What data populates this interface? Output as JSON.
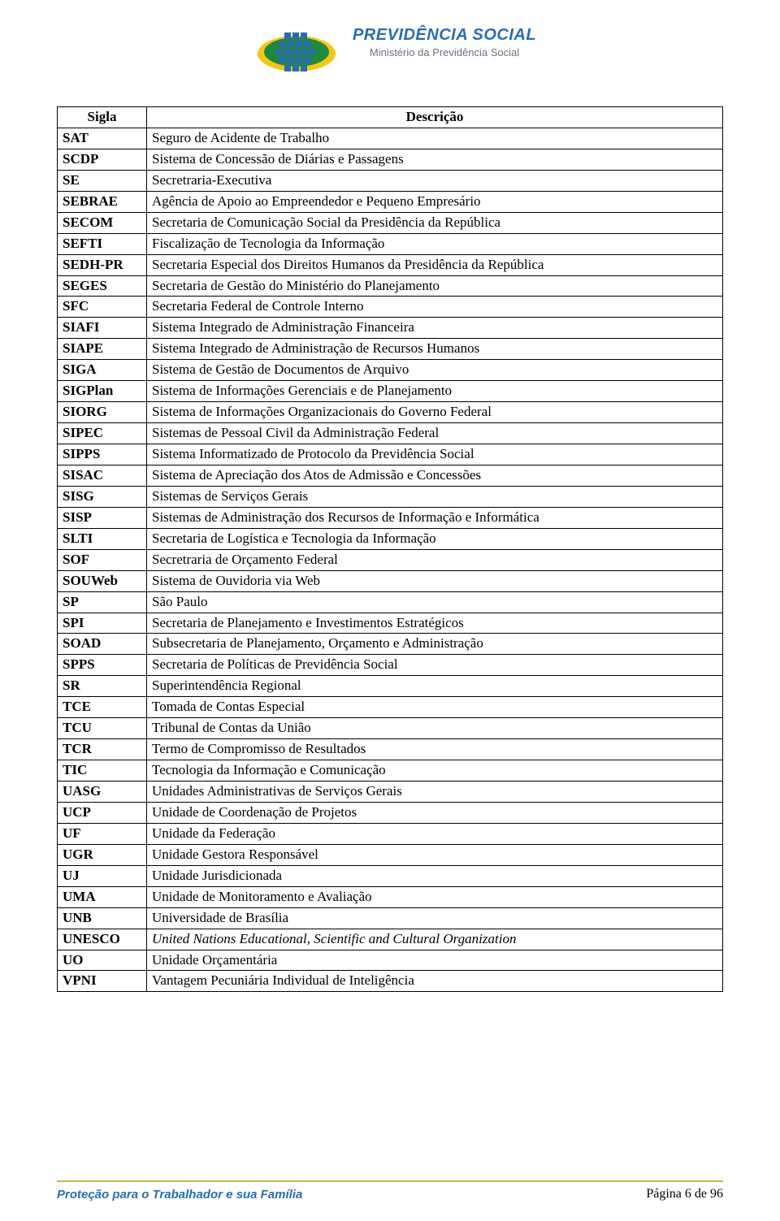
{
  "header": {
    "brand_title": "PREVIDÊNCIA SOCIAL",
    "brand_subtitle": "Ministério da Previdência Social",
    "logo_colors": {
      "blue": "#2b6cb0",
      "yellow": "#f5c518",
      "green": "#1f8a3b"
    }
  },
  "table": {
    "header_sigla": "Sigla",
    "header_desc": "Descrição",
    "rows": [
      {
        "sigla": "SAT",
        "desc": "Seguro de Acidente de Trabalho"
      },
      {
        "sigla": "SCDP",
        "desc": "Sistema de Concessão de Diárias e Passagens"
      },
      {
        "sigla": "SE",
        "desc": "Secretraria-Executiva"
      },
      {
        "sigla": "SEBRAE",
        "desc": "Agência de Apoio ao Empreendedor e Pequeno Empresário"
      },
      {
        "sigla": "SECOM",
        "desc": "Secretaria de Comunicação Social da Presidência da República"
      },
      {
        "sigla": "SEFTI",
        "desc": "Fiscalização de Tecnologia da Informação"
      },
      {
        "sigla": "SEDH-PR",
        "desc": "Secretaria Especial dos Direitos Humanos da Presidência da República"
      },
      {
        "sigla": "SEGES",
        "desc": "Secretaria de Gestão do Ministério do Planejamento"
      },
      {
        "sigla": "SFC",
        "desc": "Secretaria Federal de Controle Interno"
      },
      {
        "sigla": "SIAFI",
        "desc": "Sistema Integrado de Administração Financeira"
      },
      {
        "sigla": "SIAPE",
        "desc": "Sistema Integrado de Administração de Recursos Humanos"
      },
      {
        "sigla": "SIGA",
        "desc": "Sistema de Gestão de Documentos de Arquivo"
      },
      {
        "sigla": "SIGPlan",
        "desc": "Sistema de Informações Gerenciais e de Planejamento"
      },
      {
        "sigla": "SIORG",
        "desc": "Sistema de Informações Organizacionais do Governo Federal"
      },
      {
        "sigla": "SIPEC",
        "desc": "Sistemas de Pessoal Civil da Administração Federal"
      },
      {
        "sigla": "SIPPS",
        "desc": "Sistema Informatizado de Protocolo da Previdência Social"
      },
      {
        "sigla": "SISAC",
        "desc": "Sistema de Apreciação dos Atos de Admissão e Concessões"
      },
      {
        "sigla": "SISG",
        "desc": "Sistemas de Serviços Gerais"
      },
      {
        "sigla": "SISP",
        "desc": "Sistemas de Administração dos Recursos de Informação e Informática"
      },
      {
        "sigla": "SLTI",
        "desc": "Secretaria de Logística e Tecnologia da Informação"
      },
      {
        "sigla": "SOF",
        "desc": "Secretraria de Orçamento Federal"
      },
      {
        "sigla": "SOUWeb",
        "desc": "Sistema de Ouvidoria via Web"
      },
      {
        "sigla": "SP",
        "desc": "São Paulo"
      },
      {
        "sigla": "SPI",
        "desc": "Secretaria de Planejamento e Investimentos Estratégicos"
      },
      {
        "sigla": "SOAD",
        "desc": "Subsecretaria de Planejamento, Orçamento e Administração"
      },
      {
        "sigla": "SPPS",
        "desc": "Secretaria de Políticas de Previdência Social"
      },
      {
        "sigla": "SR",
        "desc": "Superintendência Regional"
      },
      {
        "sigla": "TCE",
        "desc": "Tomada de Contas Especial"
      },
      {
        "sigla": "TCU",
        "desc": "Tribunal de Contas da União"
      },
      {
        "sigla": "TCR",
        "desc": "Termo de Compromisso de Resultados"
      },
      {
        "sigla": "TIC",
        "desc": "Tecnologia da Informação e Comunicação"
      },
      {
        "sigla": "UASG",
        "desc": "Unidades Administrativas de Serviços Gerais"
      },
      {
        "sigla": "UCP",
        "desc": "Unidade de Coordenação de Projetos"
      },
      {
        "sigla": "UF",
        "desc": "Unidade da Federação"
      },
      {
        "sigla": "UGR",
        "desc": "Unidade Gestora Responsável"
      },
      {
        "sigla": "UJ",
        "desc": "Unidade Jurisdicionada"
      },
      {
        "sigla": "UMA",
        "desc": "Unidade de Monitoramento e Avaliação"
      },
      {
        "sigla": "UNB",
        "desc": "Universidade de Brasília"
      },
      {
        "sigla": "UNESCO",
        "desc": "United Nations Educational, Scientific and Cultural Organization",
        "italic": true
      },
      {
        "sigla": "UO",
        "desc": "Unidade Orçamentária"
      },
      {
        "sigla": "VPNI",
        "desc": "Vantagem Pecuniária Individual de Inteligência"
      }
    ]
  },
  "footer": {
    "slogan": "Proteção para o Trabalhador e sua Família",
    "page_label": "Página 6 de 96",
    "line_color": "#ccb24a"
  }
}
